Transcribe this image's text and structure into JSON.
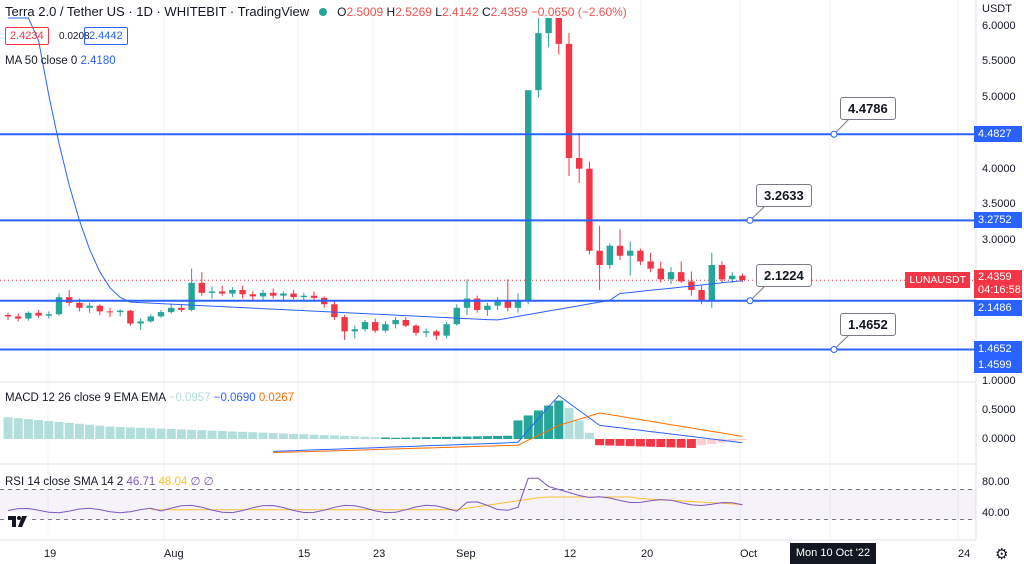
{
  "header": {
    "title": "Terra 2.0 / Tether US · 1D · WHITEBIT · TradingView",
    "ohlc": {
      "o_label": "O",
      "o": "2.5009",
      "h_label": "H",
      "h": "2.5269",
      "l_label": "L",
      "l": "2.4142",
      "c_label": "C",
      "c": "2.4359",
      "change": "−0.0650 (−2.60%)"
    },
    "bid": "2.4234",
    "spread": "0.0208",
    "ask": "2.4442",
    "ma_label": "MA 50 close 0",
    "ma_value": "2.4180"
  },
  "macd": {
    "label": "MACD 12 26 close 9 EMA EMA",
    "hist": "−0.0957",
    "macd": "−0.0690",
    "signal": "0.0267"
  },
  "rsi": {
    "label": "RSI 14 close SMA 14 2",
    "rsi": "46.71",
    "sma": "48.04",
    "e1": "∅",
    "e2": "∅"
  },
  "price_axis": {
    "currency": "USDT",
    "ticks": [
      "6.0000",
      "5.5000",
      "5.0000",
      "4.0000",
      "3.5000",
      "3.0000",
      "1.0000"
    ],
    "macd_ticks": [
      "0.5000",
      "0.0000"
    ],
    "rsi_ticks": [
      "80.00",
      "40.00"
    ]
  },
  "price_tags": {
    "symbol": "LUNAUSDT",
    "last": "2.4359",
    "countdown": "04:16:58",
    "l1": "4.4827",
    "l2": "3.2752",
    "l3": "2.1486",
    "l4": "1.4652",
    "l5": "1.4599"
  },
  "callouts": {
    "c1": "4.4786",
    "c2": "3.2633",
    "c3": "2.1224",
    "c4": "1.4652"
  },
  "time_axis": {
    "t1": "19",
    "t2": "Aug",
    "t3": "15",
    "t4": "23",
    "t5": "Sep",
    "t6": "12",
    "t7": "20",
    "t8": "Oct",
    "t9": "Mon 10 Oct '22",
    "t10": "24"
  },
  "colors": {
    "up": "#26a69a",
    "down": "#f23645",
    "line": "#2962ff",
    "macd_signal": "#ff6d00",
    "rsi_sma": "#fbc02d",
    "rsi_line": "#7e57c2"
  },
  "chart_data": {
    "type": "candlestick",
    "symbol": "LUNAUSDT",
    "interval": "1D",
    "candles": [
      [
        1.95,
        1.98,
        1.88,
        1.93
      ],
      [
        1.93,
        1.97,
        1.86,
        1.9
      ],
      [
        1.9,
        2.0,
        1.87,
        1.98
      ],
      [
        1.98,
        2.02,
        1.91,
        1.94
      ],
      [
        1.94,
        2.0,
        1.9,
        1.96
      ],
      [
        1.96,
        2.25,
        1.94,
        2.2
      ],
      [
        2.2,
        2.3,
        2.08,
        2.12
      ],
      [
        2.12,
        2.18,
        2.0,
        2.05
      ],
      [
        2.05,
        2.12,
        1.98,
        2.08
      ],
      [
        2.08,
        2.1,
        1.95,
        2.0
      ],
      [
        2.0,
        2.05,
        1.92,
        1.99
      ],
      [
        1.99,
        2.03,
        1.93,
        2.01
      ],
      [
        2.01,
        2.02,
        1.8,
        1.83
      ],
      [
        1.83,
        1.9,
        1.74,
        1.86
      ],
      [
        1.86,
        1.96,
        1.84,
        1.93
      ],
      [
        1.93,
        2.02,
        1.91,
        1.99
      ],
      [
        1.99,
        2.1,
        1.97,
        2.05
      ],
      [
        2.05,
        2.1,
        1.99,
        2.02
      ],
      [
        2.02,
        2.6,
        2.0,
        2.4
      ],
      [
        2.4,
        2.55,
        2.22,
        2.26
      ],
      [
        2.26,
        2.35,
        2.18,
        2.28
      ],
      [
        2.28,
        2.36,
        2.22,
        2.25
      ],
      [
        2.25,
        2.34,
        2.2,
        2.3
      ],
      [
        2.3,
        2.36,
        2.18,
        2.24
      ],
      [
        2.24,
        2.28,
        2.15,
        2.21
      ],
      [
        2.21,
        2.3,
        2.16,
        2.26
      ],
      [
        2.26,
        2.32,
        2.18,
        2.22
      ],
      [
        2.22,
        2.28,
        2.15,
        2.25
      ],
      [
        2.25,
        2.3,
        2.17,
        2.2
      ],
      [
        2.2,
        2.26,
        2.14,
        2.22
      ],
      [
        2.22,
        2.28,
        2.16,
        2.19
      ],
      [
        2.19,
        2.21,
        2.05,
        2.1
      ],
      [
        2.1,
        2.14,
        1.88,
        1.92
      ],
      [
        1.92,
        1.95,
        1.6,
        1.72
      ],
      [
        1.72,
        1.8,
        1.62,
        1.75
      ],
      [
        1.75,
        1.88,
        1.72,
        1.85
      ],
      [
        1.85,
        1.9,
        1.7,
        1.73
      ],
      [
        1.73,
        1.86,
        1.7,
        1.82
      ],
      [
        1.82,
        1.92,
        1.76,
        1.88
      ],
      [
        1.88,
        1.92,
        1.78,
        1.8
      ],
      [
        1.8,
        1.82,
        1.66,
        1.7
      ],
      [
        1.7,
        1.76,
        1.64,
        1.72
      ],
      [
        1.72,
        1.74,
        1.6,
        1.66
      ],
      [
        1.66,
        1.85,
        1.62,
        1.82
      ],
      [
        1.82,
        2.1,
        1.8,
        2.05
      ],
      [
        2.05,
        2.45,
        1.95,
        2.18
      ],
      [
        2.18,
        2.22,
        1.98,
        2.02
      ],
      [
        2.02,
        2.12,
        1.94,
        2.08
      ],
      [
        2.08,
        2.2,
        2.02,
        2.15
      ],
      [
        2.15,
        2.45,
        2.0,
        2.05
      ],
      [
        2.05,
        2.25,
        1.98,
        2.15
      ],
      [
        2.15,
        5.1,
        2.1,
        5.1
      ],
      [
        5.1,
        6.7,
        5.0,
        5.9
      ],
      [
        5.9,
        6.5,
        5.7,
        6.35
      ],
      [
        6.35,
        6.45,
        5.6,
        5.75
      ],
      [
        5.75,
        5.9,
        3.9,
        4.15
      ],
      [
        4.15,
        4.5,
        3.8,
        4.0
      ],
      [
        4.0,
        4.1,
        2.8,
        2.85
      ],
      [
        2.85,
        3.2,
        2.3,
        2.65
      ],
      [
        2.65,
        2.95,
        2.6,
        2.92
      ],
      [
        2.92,
        3.15,
        2.72,
        2.78
      ],
      [
        2.78,
        2.98,
        2.5,
        2.85
      ],
      [
        2.85,
        2.88,
        2.65,
        2.7
      ],
      [
        2.7,
        2.82,
        2.55,
        2.6
      ],
      [
        2.6,
        2.7,
        2.4,
        2.45
      ],
      [
        2.45,
        2.62,
        2.38,
        2.55
      ],
      [
        2.55,
        2.7,
        2.4,
        2.42
      ],
      [
        2.42,
        2.56,
        2.22,
        2.3
      ],
      [
        2.3,
        2.36,
        2.1,
        2.15
      ],
      [
        2.15,
        2.82,
        2.05,
        2.65
      ],
      [
        2.65,
        2.7,
        2.4,
        2.45
      ],
      [
        2.45,
        2.55,
        2.4,
        2.5
      ],
      [
        2.5,
        2.53,
        2.41,
        2.44
      ]
    ],
    "levels": [
      4.4786,
      3.2633,
      2.1224,
      1.4652
    ],
    "price_range": [
      1.0,
      6.2
    ],
    "macd_range": [
      -0.3,
      0.75
    ],
    "rsi_range": [
      20,
      90
    ],
    "rsi_bands": [
      70,
      30
    ]
  }
}
